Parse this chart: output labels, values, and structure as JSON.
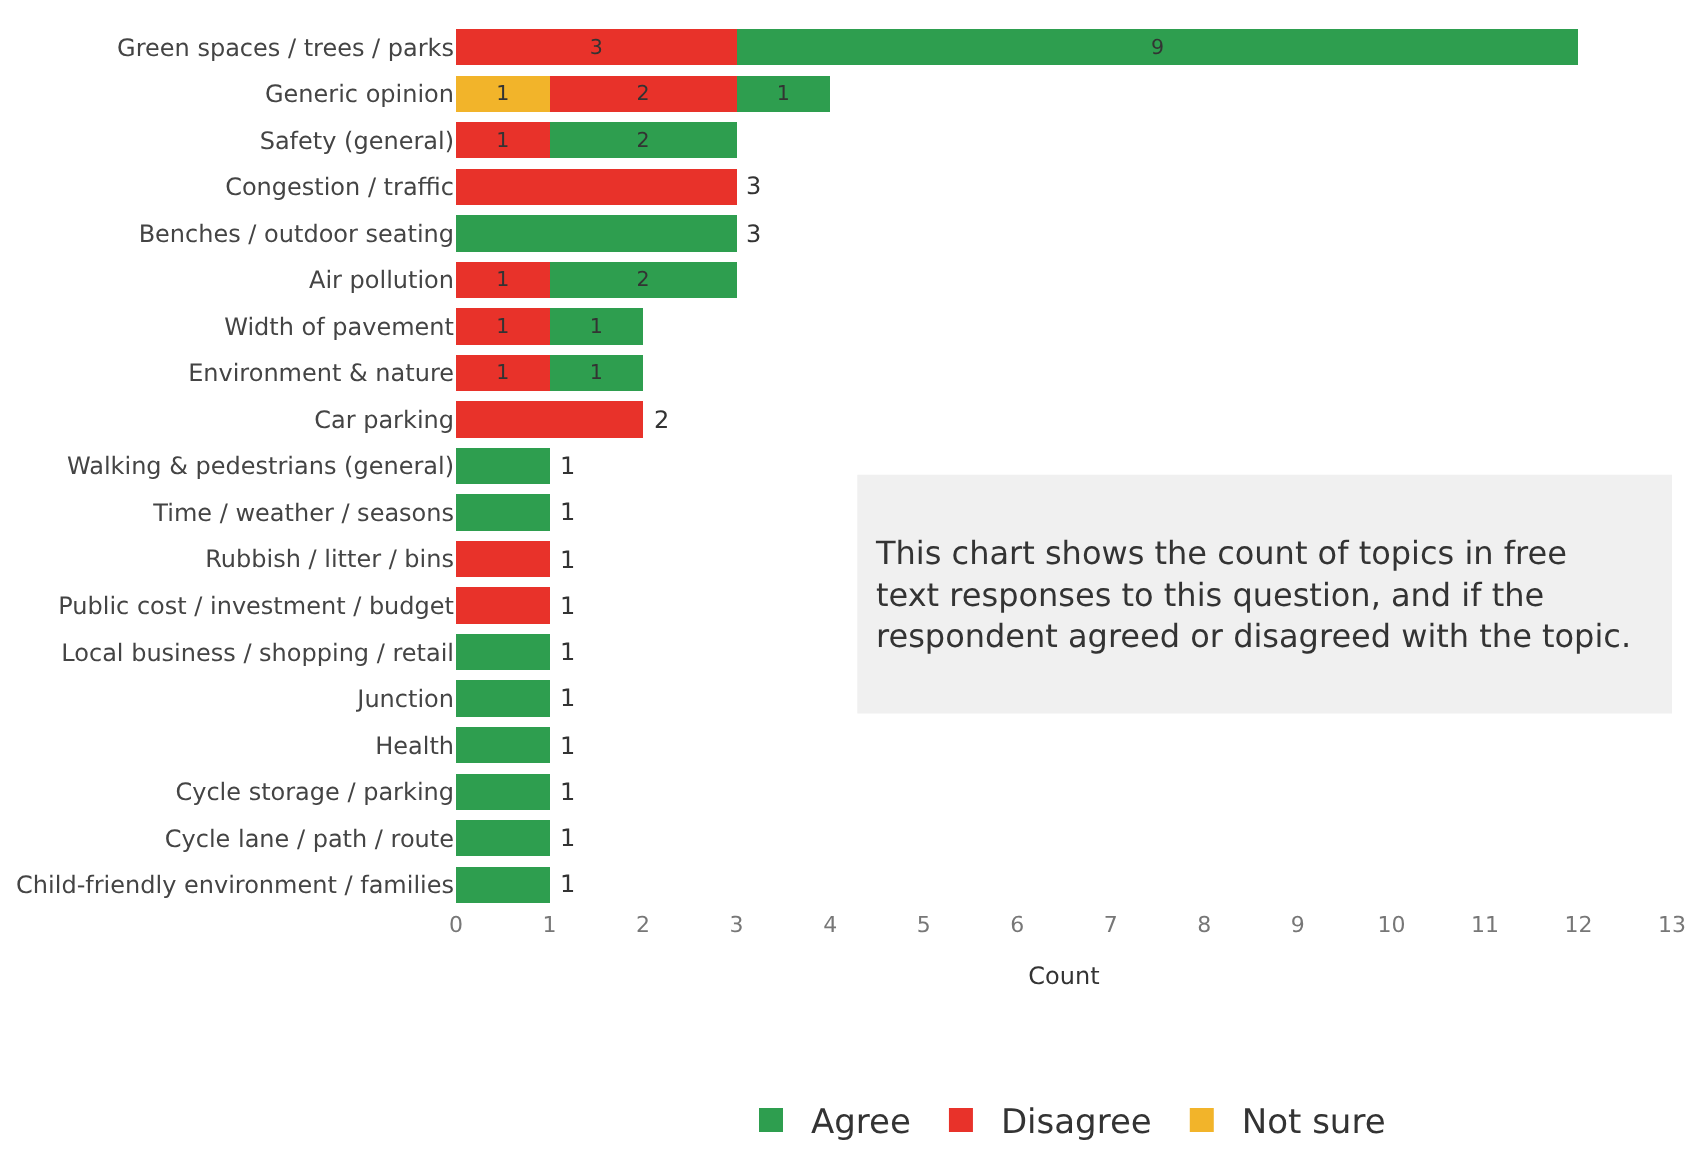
{
  "chart_data": {
    "type": "bar",
    "orientation": "horizontal",
    "stacked": true,
    "xlabel": "Count",
    "categories": [
      "Green spaces / trees / parks",
      "Generic opinion",
      "Safety (general)",
      "Congestion / traffic",
      "Benches / outdoor seating",
      "Air pollution",
      "Width of pavement",
      "Environment & nature",
      "Car parking",
      "Walking & pedestrians (general)",
      "Time / weather / seasons",
      "Rubbish / litter / bins",
      "Public cost / investment / budget",
      "Local business / shopping / retail",
      "Junction",
      "Health",
      "Cycle storage / parking",
      "Cycle lane / path / route",
      "Child-friendly environment / families"
    ],
    "series": [
      {
        "name": "Not sure",
        "color": "#f2b42a",
        "values": [
          null,
          1,
          null,
          null,
          null,
          null,
          null,
          null,
          null,
          null,
          null,
          null,
          null,
          null,
          null,
          null,
          null,
          null,
          null
        ],
        "value_labels": [
          null,
          "1",
          null,
          null,
          null,
          null,
          null,
          null,
          null,
          null,
          null,
          null,
          null,
          null,
          null,
          null,
          null,
          null,
          null
        ]
      },
      {
        "name": "Disagree",
        "color": "#e8322a",
        "values": [
          3,
          2,
          1,
          3,
          null,
          1,
          1,
          1,
          2,
          null,
          null,
          1,
          1,
          null,
          null,
          null,
          null,
          null,
          null
        ],
        "value_labels": [
          "3",
          "2",
          "1",
          null,
          null,
          "1",
          "1",
          "1",
          null,
          null,
          null,
          null,
          null,
          null,
          null,
          null,
          null,
          null,
          null
        ]
      },
      {
        "name": "Agree",
        "color": "#2e9e4f",
        "values": [
          9,
          1,
          2,
          null,
          3,
          2,
          1,
          1,
          null,
          1,
          1,
          null,
          null,
          1,
          1,
          1,
          1,
          1,
          1
        ],
        "value_labels": [
          "9",
          "1",
          "2",
          null,
          null,
          "2",
          "1",
          "1",
          null,
          null,
          null,
          null,
          null,
          null,
          null,
          null,
          null,
          null,
          null
        ]
      }
    ],
    "totals": [
      null,
      null,
      null,
      "3",
      "3",
      null,
      null,
      null,
      "2",
      "1",
      "1",
      "1",
      "1",
      "1",
      "1",
      "1",
      "1",
      "1",
      "1"
    ],
    "xlim": [
      0,
      13
    ],
    "xticks": [
      0,
      1,
      2,
      3,
      4,
      5,
      6,
      7,
      8,
      9,
      10,
      11,
      12,
      13
    ],
    "legend": "bottom",
    "annotations": [
      "This chart shows the count of topics in free text responses to this question, and if the respondent agreed or disagreed with the topic."
    ]
  }
}
